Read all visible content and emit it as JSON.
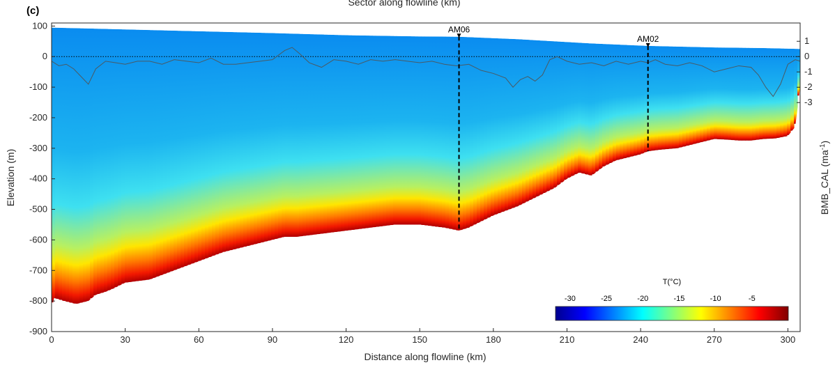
{
  "chart_data": {
    "type": "heatmap",
    "panel_label": "(c)",
    "top_title_fragment": "Sector along flowline (km)",
    "xlabel": "Distance along flowline (km)",
    "ylabel": "Elevation (m)",
    "y2label": "BMB_CAL (ma-1)",
    "xlim": [
      0,
      305
    ],
    "ylim": [
      -900,
      110
    ],
    "y2lim": [
      -3.2,
      1.2
    ],
    "xticks": [
      0,
      30,
      60,
      90,
      120,
      150,
      180,
      210,
      240,
      270,
      300
    ],
    "yticks": [
      100,
      0,
      -100,
      -200,
      -300,
      -400,
      -500,
      -600,
      -700,
      -800,
      -900
    ],
    "y2ticks": [
      1,
      0,
      -1,
      -2,
      -3
    ],
    "zero_line": 0,
    "surface": {
      "x": [
        0,
        10,
        30,
        60,
        90,
        120,
        150,
        166,
        190,
        220,
        243,
        270,
        290,
        305
      ],
      "y": [
        95,
        93,
        89,
        83,
        77,
        70,
        66,
        65,
        57,
        43,
        35,
        30,
        28,
        25
      ]
    },
    "bed": {
      "x": [
        0,
        1,
        5,
        10,
        15,
        18,
        22,
        25,
        30,
        40,
        50,
        60,
        70,
        80,
        90,
        95,
        100,
        110,
        120,
        130,
        140,
        150,
        160,
        166,
        170,
        180,
        190,
        195,
        200,
        205,
        210,
        215,
        220,
        225,
        230,
        235,
        240,
        243,
        248,
        255,
        260,
        265,
        270,
        275,
        280,
        285,
        290,
        295,
        300,
        303,
        305
      ],
      "y": [
        -840,
        -790,
        -800,
        -810,
        -800,
        -780,
        -770,
        -760,
        -740,
        -730,
        -700,
        -670,
        -640,
        -620,
        -600,
        -590,
        -590,
        -580,
        -570,
        -560,
        -550,
        -550,
        -560,
        -570,
        -560,
        -520,
        -490,
        -470,
        -450,
        -430,
        -400,
        -380,
        -390,
        -360,
        -340,
        -330,
        -320,
        -310,
        -305,
        -300,
        -290,
        -280,
        -270,
        -272,
        -275,
        -275,
        -270,
        -268,
        -260,
        -230,
        -100
      ]
    },
    "colormap": {
      "title": "T(°C)",
      "range": [
        -32,
        0
      ],
      "ticks": [
        -30,
        -25,
        -20,
        -15,
        -10,
        -5
      ],
      "stops": [
        "#00008f",
        "#0000ff",
        "#0080ff",
        "#00ffff",
        "#80ff80",
        "#ffff00",
        "#ff8000",
        "#ff0000",
        "#800000"
      ]
    },
    "markers": [
      {
        "label": "AM06",
        "x": 166,
        "top": 66,
        "bottom": -570
      },
      {
        "label": "AM02",
        "x": 243,
        "top": 35,
        "bottom": -310
      }
    ],
    "bmb_series": {
      "x": [
        0,
        3,
        6,
        9,
        12,
        15,
        18,
        22,
        26,
        30,
        35,
        40,
        45,
        50,
        55,
        60,
        65,
        70,
        75,
        80,
        85,
        90,
        95,
        98,
        101,
        105,
        110,
        115,
        120,
        125,
        130,
        135,
        140,
        145,
        150,
        155,
        160,
        165,
        170,
        175,
        180,
        185,
        188,
        191,
        194,
        197,
        200,
        203,
        206,
        210,
        215,
        220,
        225,
        230,
        235,
        240,
        243,
        246,
        250,
        255,
        260,
        265,
        270,
        275,
        280,
        285,
        288,
        291,
        294,
        297,
        300,
        303,
        305
      ],
      "y": [
        -0.3,
        -0.6,
        -0.5,
        -0.8,
        -1.3,
        -1.8,
        -0.8,
        -0.3,
        -0.4,
        -0.5,
        -0.3,
        -0.3,
        -0.5,
        -0.2,
        -0.3,
        -0.4,
        -0.1,
        -0.5,
        -0.5,
        -0.4,
        -0.3,
        -0.2,
        0.4,
        0.6,
        0.2,
        -0.4,
        -0.7,
        -0.2,
        -0.3,
        -0.5,
        -0.2,
        -0.3,
        -0.2,
        -0.3,
        -0.4,
        -0.3,
        -0.5,
        -0.6,
        -0.5,
        -0.9,
        -1.1,
        -1.4,
        -2.0,
        -1.5,
        -1.3,
        -1.6,
        -1.2,
        -0.2,
        0.0,
        -0.3,
        -0.5,
        -0.4,
        -0.6,
        -0.3,
        -0.5,
        -0.3,
        -0.4,
        -0.2,
        -0.5,
        -0.6,
        -0.4,
        -0.6,
        -1.0,
        -0.8,
        -0.6,
        -0.7,
        -1.2,
        -2.0,
        -2.6,
        -1.8,
        -0.5,
        -0.2,
        -0.3
      ]
    }
  }
}
